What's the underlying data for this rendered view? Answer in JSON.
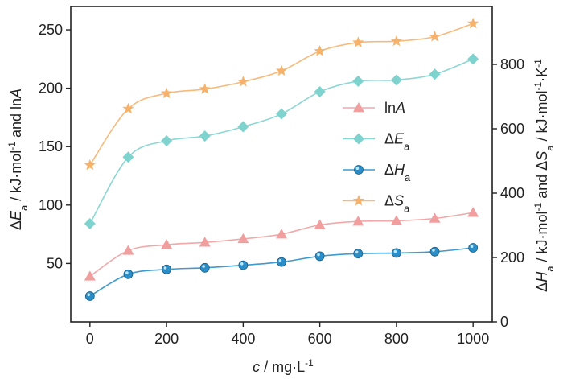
{
  "chart_data": {
    "type": "line",
    "x": [
      0,
      100,
      200,
      300,
      400,
      500,
      600,
      700,
      800,
      900,
      1000
    ],
    "xlabel": {
      "italic": "c",
      "rest": " / mg·L",
      "sup": "-1"
    },
    "xlim": [
      -50,
      1050
    ],
    "xticks": [
      0,
      200,
      400,
      600,
      800,
      1000
    ],
    "ylabel_left": {
      "delta": "Δ",
      "E": "E",
      "sub": "a",
      "mid": " / kJ·mol",
      "sup": "-1",
      "tail": " and ln",
      "A": "A"
    },
    "ylim_left": [
      0,
      270
    ],
    "yticks_left": [
      50,
      100,
      150,
      200,
      250
    ],
    "ylabel_right": {
      "delta1": "Δ",
      "H": "H",
      "sub1": "a",
      "mid1": " / kJ·mol",
      "sup1": "-1",
      "and": " and Δ",
      "S": "S",
      "sub2": "a",
      "mid2": " / kJ·mol",
      "sup2": "-1",
      "mid3": "·K",
      "sup3": "-1"
    },
    "ylim_right": [
      0,
      980
    ],
    "yticks_right": [
      0,
      200,
      400,
      600,
      800
    ],
    "grid": false,
    "legend_position": "center-right",
    "series": [
      {
        "key": "lnA",
        "name": "lnA",
        "label_plain": "ln",
        "label_italic": "A",
        "label_sub": "",
        "axis": "left",
        "marker": "triangle",
        "color": "#F19E9E",
        "values": [
          39,
          61,
          66,
          68,
          71,
          75,
          83,
          86,
          86.5,
          88.5,
          93.5
        ]
      },
      {
        "key": "Ea",
        "name": "ΔEa",
        "label_plain": "Δ",
        "label_italic": "E",
        "label_sub": "a",
        "axis": "left",
        "marker": "diamond",
        "color": "#7FD3CF",
        "values": [
          84,
          141,
          155,
          159,
          167,
          178,
          197,
          206,
          207,
          212,
          225
        ]
      },
      {
        "key": "Ha",
        "name": "ΔHa",
        "label_plain": "Δ",
        "label_italic": "H",
        "label_sub": "a",
        "axis": "right",
        "marker": "circle",
        "color": "#2A8FC9",
        "values": [
          80,
          148,
          163,
          168,
          176,
          186,
          204,
          212,
          214,
          218,
          230
        ]
      },
      {
        "key": "Sa",
        "name": "ΔSa",
        "label_plain": "Δ",
        "label_italic": "S",
        "label_sub": "a",
        "axis": "right",
        "marker": "star",
        "color": "#F6B26B",
        "values": [
          487,
          662,
          710,
          723,
          746,
          780,
          841,
          868,
          872,
          886,
          927
        ]
      }
    ]
  }
}
